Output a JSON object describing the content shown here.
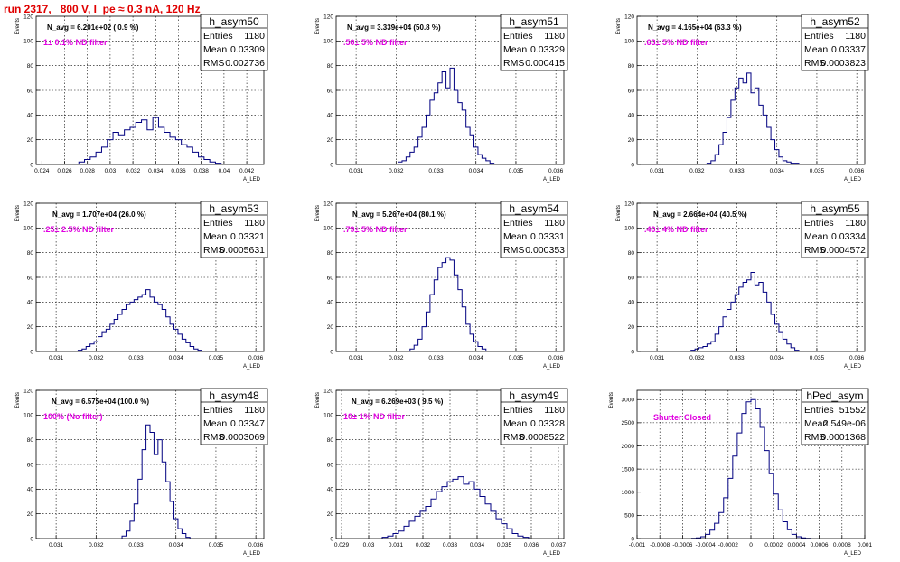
{
  "page_title": "run 2317,   800 V, I_pe ≈ 0.3 nA, 120 Hz",
  "chart_data": [
    {
      "type": "histogram",
      "title": "h_asym50",
      "navg": "N_avg = 6.201e+02 ( 0.9 %)",
      "note": "1± 0.1% ND filter",
      "xlabel": "A_LED",
      "ylabel": "Events",
      "stats": [
        {
          "label": "Entries",
          "value": "1180"
        },
        {
          "label": "Mean",
          "value": "0.03309"
        },
        {
          "label": "RMS",
          "value": "0.002736"
        }
      ],
      "xlim": [
        0.0235,
        0.0435
      ],
      "ylim": [
        0,
        120
      ],
      "xticks": [
        0.024,
        0.026,
        0.028,
        0.03,
        0.032,
        0.034,
        0.036,
        0.038,
        0.04,
        0.042
      ],
      "xtick_labels": [
        "0.024",
        "0.026",
        "0.028",
        "0.03",
        "0.032",
        "0.034",
        "0.036",
        "0.038",
        "0.04",
        "0.042"
      ],
      "yticks": [
        0,
        20,
        40,
        60,
        80,
        100,
        120
      ],
      "ytick_labels": [
        "0",
        "20",
        "40",
        "60",
        "80",
        "100",
        "120"
      ],
      "x": [
        0.0275,
        0.028,
        0.0285,
        0.029,
        0.0295,
        0.03,
        0.0305,
        0.031,
        0.0315,
        0.032,
        0.0325,
        0.033,
        0.0335,
        0.034,
        0.0345,
        0.035,
        0.0355,
        0.036,
        0.0365,
        0.037,
        0.0375,
        0.038,
        0.0385,
        0.039,
        0.0395
      ],
      "values": [
        2,
        4,
        6,
        10,
        14,
        20,
        26,
        24,
        28,
        30,
        34,
        36,
        28,
        38,
        30,
        26,
        22,
        20,
        16,
        14,
        10,
        6,
        4,
        2,
        1
      ]
    },
    {
      "type": "histogram",
      "title": "h_asym51",
      "navg": "N_avg = 3.339e+04 (50.8 %)",
      "note": ".50± 5% ND filter",
      "xlabel": "A_LED",
      "ylabel": "Events",
      "stats": [
        {
          "label": "Entries",
          "value": "1180"
        },
        {
          "label": "Mean",
          "value": "0.03329"
        },
        {
          "label": "RMS",
          "value": "0.000415"
        }
      ],
      "xlim": [
        0.0305,
        0.0362
      ],
      "ylim": [
        0,
        120
      ],
      "xticks": [
        0.031,
        0.032,
        0.033,
        0.034,
        0.035,
        0.036
      ],
      "xtick_labels": [
        "0.031",
        "0.032",
        "0.033",
        "0.034",
        "0.035",
        "0.036"
      ],
      "yticks": [
        0,
        20,
        40,
        60,
        80,
        100,
        120
      ],
      "ytick_labels": [
        "0",
        "20",
        "40",
        "60",
        "80",
        "100",
        "120"
      ],
      "x": [
        0.0321,
        0.0322,
        0.0323,
        0.0324,
        0.0325,
        0.0326,
        0.0327,
        0.0328,
        0.0329,
        0.033,
        0.0331,
        0.0332,
        0.0333,
        0.0334,
        0.0335,
        0.0336,
        0.0337,
        0.0338,
        0.0339,
        0.034,
        0.0341,
        0.0342,
        0.0343,
        0.0344
      ],
      "values": [
        2,
        3,
        6,
        10,
        14,
        22,
        30,
        40,
        52,
        58,
        66,
        75,
        62,
        78,
        60,
        50,
        44,
        30,
        24,
        14,
        8,
        5,
        3,
        1
      ]
    },
    {
      "type": "histogram",
      "title": "h_asym52",
      "navg": "N_avg = 4.165e+04 (63.3 %)",
      "note": ".63± 5% ND filter",
      "xlabel": "A_LED",
      "ylabel": "Events",
      "stats": [
        {
          "label": "Entries",
          "value": "1180"
        },
        {
          "label": "Mean",
          "value": "0.03337"
        },
        {
          "label": "RMS",
          "value": "0.0003823"
        }
      ],
      "xlim": [
        0.0305,
        0.0362
      ],
      "ylim": [
        0,
        120
      ],
      "xticks": [
        0.031,
        0.032,
        0.033,
        0.034,
        0.035,
        0.036
      ],
      "xtick_labels": [
        "0.031",
        "0.032",
        "0.033",
        "0.034",
        "0.035",
        "0.036"
      ],
      "yticks": [
        0,
        20,
        40,
        60,
        80,
        100,
        120
      ],
      "ytick_labels": [
        "0",
        "20",
        "40",
        "60",
        "80",
        "100",
        "120"
      ],
      "x": [
        0.0323,
        0.0324,
        0.0325,
        0.0326,
        0.0327,
        0.0328,
        0.0329,
        0.033,
        0.0331,
        0.0332,
        0.0333,
        0.0334,
        0.0335,
        0.0336,
        0.0337,
        0.0338,
        0.0339,
        0.034,
        0.0341,
        0.0342,
        0.0343,
        0.0344,
        0.0345
      ],
      "values": [
        1,
        3,
        8,
        16,
        26,
        38,
        52,
        62,
        70,
        66,
        74,
        58,
        62,
        48,
        40,
        30,
        20,
        12,
        6,
        3,
        2,
        1,
        1
      ]
    },
    {
      "type": "histogram",
      "title": "h_asym53",
      "navg": "N_avg = 1.707e+04 (26.0 %)",
      "note": ".25± 2.5% ND filter",
      "xlabel": "A_LED",
      "ylabel": "Events",
      "stats": [
        {
          "label": "Entries",
          "value": "1180"
        },
        {
          "label": "Mean",
          "value": "0.03321"
        },
        {
          "label": "RMS",
          "value": "0.0005631"
        }
      ],
      "xlim": [
        0.0305,
        0.0362
      ],
      "ylim": [
        0,
        120
      ],
      "xticks": [
        0.031,
        0.032,
        0.033,
        0.034,
        0.035,
        0.036
      ],
      "xtick_labels": [
        "0.031",
        "0.032",
        "0.033",
        "0.034",
        "0.035",
        "0.036"
      ],
      "yticks": [
        0,
        20,
        40,
        60,
        80,
        100,
        120
      ],
      "ytick_labels": [
        "0",
        "20",
        "40",
        "60",
        "80",
        "100",
        "120"
      ],
      "x": [
        0.0316,
        0.0317,
        0.0318,
        0.0319,
        0.032,
        0.0321,
        0.0322,
        0.0323,
        0.0324,
        0.0325,
        0.0326,
        0.0327,
        0.0328,
        0.0329,
        0.033,
        0.0331,
        0.0332,
        0.0333,
        0.0334,
        0.0335,
        0.0336,
        0.0337,
        0.0338,
        0.0339,
        0.034,
        0.0341,
        0.0342,
        0.0343,
        0.0344,
        0.0345,
        0.0346
      ],
      "values": [
        1,
        2,
        4,
        6,
        8,
        12,
        16,
        18,
        22,
        26,
        30,
        34,
        38,
        40,
        42,
        44,
        46,
        50,
        44,
        40,
        38,
        34,
        28,
        22,
        18,
        14,
        10,
        7,
        4,
        2,
        1
      ]
    },
    {
      "type": "histogram",
      "title": "h_asym54",
      "navg": "N_avg = 5.267e+04 (80.1 %)",
      "note": ".79± 5% ND filter",
      "xlabel": "A_LED",
      "ylabel": "Events",
      "stats": [
        {
          "label": "Entries",
          "value": "1180"
        },
        {
          "label": "Mean",
          "value": "0.03331"
        },
        {
          "label": "RMS",
          "value": "0.000353"
        }
      ],
      "xlim": [
        0.0305,
        0.0362
      ],
      "ylim": [
        0,
        120
      ],
      "xticks": [
        0.031,
        0.032,
        0.033,
        0.034,
        0.035,
        0.036
      ],
      "xtick_labels": [
        "0.031",
        "0.032",
        "0.033",
        "0.034",
        "0.035",
        "0.036"
      ],
      "yticks": [
        0,
        20,
        40,
        60,
        80,
        100,
        120
      ],
      "ytick_labels": [
        "0",
        "20",
        "40",
        "60",
        "80",
        "100",
        "120"
      ],
      "x": [
        0.0324,
        0.0325,
        0.0326,
        0.0327,
        0.0328,
        0.0329,
        0.033,
        0.0331,
        0.0332,
        0.0333,
        0.0334,
        0.0335,
        0.0336,
        0.0337,
        0.0338,
        0.0339,
        0.034,
        0.0341,
        0.0342
      ],
      "values": [
        2,
        5,
        10,
        20,
        32,
        46,
        58,
        68,
        72,
        76,
        74,
        62,
        50,
        36,
        22,
        14,
        8,
        4,
        2
      ]
    },
    {
      "type": "histogram",
      "title": "h_asym55",
      "navg": "N_avg = 2.664e+04 (40.5 %)",
      "note": ".40± 4% ND filter",
      "xlabel": "A_LED",
      "ylabel": "Events",
      "stats": [
        {
          "label": "Entries",
          "value": "1180"
        },
        {
          "label": "Mean",
          "value": "0.03334"
        },
        {
          "label": "RMS",
          "value": "0.0004572"
        }
      ],
      "xlim": [
        0.0305,
        0.0362
      ],
      "ylim": [
        0,
        120
      ],
      "xticks": [
        0.031,
        0.032,
        0.033,
        0.034,
        0.035,
        0.036
      ],
      "xtick_labels": [
        "0.031",
        "0.032",
        "0.033",
        "0.034",
        "0.035",
        "0.036"
      ],
      "yticks": [
        0,
        20,
        40,
        60,
        80,
        100,
        120
      ],
      "ytick_labels": [
        "0",
        "20",
        "40",
        "60",
        "80",
        "100",
        "120"
      ],
      "x": [
        0.0319,
        0.032,
        0.0321,
        0.0322,
        0.0323,
        0.0324,
        0.0325,
        0.0326,
        0.0327,
        0.0328,
        0.0329,
        0.033,
        0.0331,
        0.0332,
        0.0333,
        0.0334,
        0.0335,
        0.0336,
        0.0337,
        0.0338,
        0.0339,
        0.034,
        0.0341,
        0.0342,
        0.0343,
        0.0344,
        0.0345
      ],
      "values": [
        1,
        2,
        3,
        4,
        6,
        8,
        14,
        20,
        28,
        34,
        40,
        46,
        52,
        56,
        58,
        64,
        54,
        56,
        48,
        40,
        30,
        22,
        16,
        10,
        6,
        3,
        1
      ]
    },
    {
      "type": "histogram",
      "title": "h_asym48",
      "navg": "N_avg = 6.575e+04 (100.0 %)",
      "note": "100% (No filter)",
      "xlabel": "A_LED",
      "ylabel": "Events",
      "stats": [
        {
          "label": "Entries",
          "value": "1180"
        },
        {
          "label": "Mean",
          "value": "0.03347"
        },
        {
          "label": "RMS",
          "value": "0.0003069"
        }
      ],
      "xlim": [
        0.0305,
        0.0362
      ],
      "ylim": [
        0,
        120
      ],
      "xticks": [
        0.031,
        0.032,
        0.033,
        0.034,
        0.035,
        0.036
      ],
      "xtick_labels": [
        "0.031",
        "0.032",
        "0.033",
        "0.034",
        "0.035",
        "0.036"
      ],
      "yticks": [
        0,
        20,
        40,
        60,
        80,
        100,
        120
      ],
      "ytick_labels": [
        "0",
        "20",
        "40",
        "60",
        "80",
        "100",
        "120"
      ],
      "x": [
        0.0327,
        0.0328,
        0.0329,
        0.033,
        0.0331,
        0.0332,
        0.0333,
        0.0334,
        0.0335,
        0.0336,
        0.0337,
        0.0338,
        0.0339,
        0.034,
        0.0341,
        0.0342,
        0.0343
      ],
      "values": [
        2,
        6,
        14,
        28,
        48,
        72,
        92,
        86,
        68,
        80,
        62,
        46,
        30,
        16,
        8,
        4,
        1
      ]
    },
    {
      "type": "histogram",
      "title": "h_asym49",
      "navg": "N_avg = 6.269e+03 ( 9.5 %)",
      "note": "10± 1% ND filter",
      "xlabel": "A_LED",
      "ylabel": "Events",
      "stats": [
        {
          "label": "Entries",
          "value": "1180"
        },
        {
          "label": "Mean",
          "value": "0.03328"
        },
        {
          "label": "RMS",
          "value": "0.0008522"
        }
      ],
      "xlim": [
        0.0288,
        0.0372
      ],
      "ylim": [
        0,
        120
      ],
      "xticks": [
        0.029,
        0.03,
        0.031,
        0.032,
        0.033,
        0.034,
        0.035,
        0.036,
        0.037
      ],
      "xtick_labels": [
        "0.029",
        "0.03",
        "0.031",
        "0.032",
        "0.033",
        "0.034",
        "0.035",
        "0.036",
        "0.037"
      ],
      "yticks": [
        0,
        20,
        40,
        60,
        80,
        100,
        120
      ],
      "ytick_labels": [
        "0",
        "20",
        "40",
        "60",
        "80",
        "100",
        "120"
      ],
      "x": [
        0.0306,
        0.0308,
        0.031,
        0.0312,
        0.0314,
        0.0316,
        0.0318,
        0.032,
        0.0322,
        0.0324,
        0.0326,
        0.0328,
        0.033,
        0.0332,
        0.0334,
        0.0336,
        0.0338,
        0.034,
        0.0342,
        0.0344,
        0.0346,
        0.0348,
        0.035,
        0.0352,
        0.0354,
        0.0356,
        0.0358
      ],
      "values": [
        1,
        2,
        4,
        6,
        10,
        14,
        18,
        22,
        26,
        32,
        38,
        42,
        46,
        48,
        50,
        44,
        46,
        40,
        34,
        28,
        22,
        16,
        12,
        8,
        4,
        2,
        1
      ]
    },
    {
      "type": "histogram",
      "title": "hPed_asym",
      "navg": "",
      "note": "Shutter Closed",
      "xlabel": "A_LED",
      "ylabel": "Events",
      "stats": [
        {
          "label": "Entries",
          "value": "51552"
        },
        {
          "label": "Mean",
          "value": "2.549e-06"
        },
        {
          "label": "RMS",
          "value": "0.0001368"
        }
      ],
      "xlim": [
        -0.001,
        0.001
      ],
      "ylim": [
        0,
        3200
      ],
      "xticks": [
        -0.001,
        -0.0008,
        -0.0006,
        -0.0004,
        -0.0002,
        0,
        0.0002,
        0.0004,
        0.0006,
        0.0008,
        0.001
      ],
      "xtick_labels": [
        "-0.001",
        "-0.0008",
        "-0.0006",
        "-0.0004",
        "-0.0002",
        "0",
        "0.0002",
        "0.0004",
        "0.0006",
        "0.0008",
        "0.001"
      ],
      "yticks": [
        0,
        500,
        1000,
        1500,
        2000,
        2500,
        3000
      ],
      "ytick_labels": [
        "0",
        "500",
        "1000",
        "1500",
        "2000",
        "2500",
        "3000"
      ],
      "x": [
        -0.0005,
        -0.00046,
        -0.00042,
        -0.00038,
        -0.00034,
        -0.0003,
        -0.00026,
        -0.00022,
        -0.00018,
        -0.00014,
        -0.0001,
        -6e-05,
        -2e-05,
        2e-05,
        6e-05,
        0.0001,
        0.00014,
        0.00018,
        0.00022,
        0.00026,
        0.0003,
        0.00034,
        0.00038,
        0.00042,
        0.00046,
        0.0005
      ],
      "values": [
        5,
        15,
        40,
        90,
        180,
        330,
        560,
        880,
        1300,
        1780,
        2280,
        2700,
        2950,
        3000,
        2800,
        2400,
        1900,
        1400,
        960,
        620,
        360,
        190,
        90,
        40,
        15,
        5
      ]
    }
  ]
}
